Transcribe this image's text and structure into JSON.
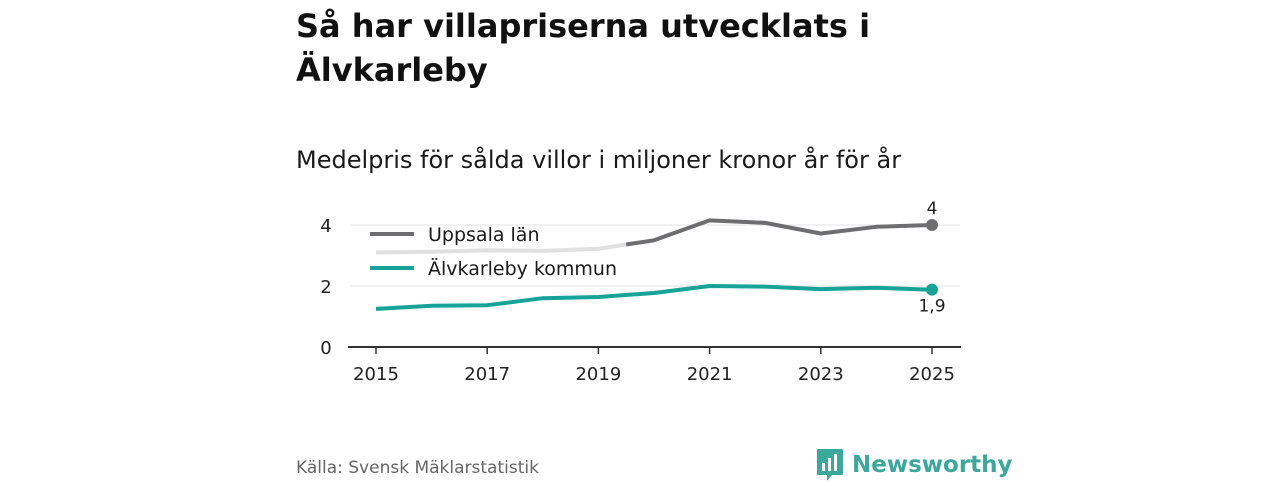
{
  "title": "Så har villapriserna utvecklats i Älvkarleby",
  "subtitle": "Medelpris för sålda villor i miljoner kronor år för år",
  "source": "Källa: Svensk Mäklarstatistik",
  "brand": {
    "name": "Newsworthy",
    "icon": "bar-chart-speech-bubble-icon"
  },
  "colors": {
    "uppsala": "#6e6e70",
    "uppsala_faded": "#e0e0e0",
    "alvkarleby": "#17a398",
    "grid": "#e3e3e3",
    "axis": "#333333"
  },
  "chart_data": {
    "type": "line",
    "title": "Så har villapriserna utvecklats i Älvkarleby",
    "subtitle": "Medelpris för sålda villor i miljoner kronor år för år",
    "xlabel": "",
    "ylabel": "",
    "x": [
      2015,
      2016,
      2017,
      2018,
      2019,
      2020,
      2021,
      2022,
      2023,
      2024,
      2025
    ],
    "xticks": [
      "2015",
      "2017",
      "2019",
      "2021",
      "2023",
      "2025"
    ],
    "yticks": [
      "0",
      "2",
      "4"
    ],
    "ylim": [
      0,
      4
    ],
    "grid": true,
    "legend": "top-left",
    "series": [
      {
        "name": "Uppsala län",
        "values": [
          3.1,
          3.12,
          3.17,
          3.15,
          3.22,
          3.5,
          4.15,
          4.07,
          3.72,
          3.94,
          4.0
        ],
        "faded_until": 2019.5,
        "end_label": "4"
      },
      {
        "name": "Älvkarleby kommun",
        "values": [
          1.25,
          1.35,
          1.37,
          1.6,
          1.64,
          1.77,
          2.0,
          1.98,
          1.9,
          1.94,
          1.88
        ],
        "end_label": "1,9"
      }
    ]
  }
}
